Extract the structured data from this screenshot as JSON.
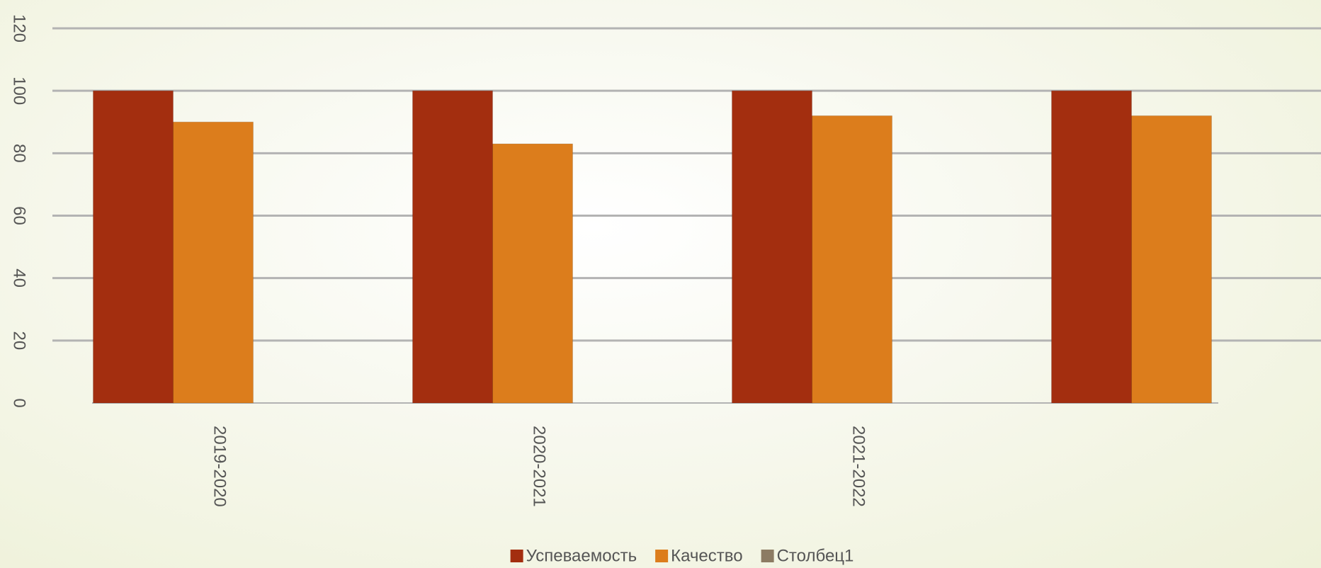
{
  "chart_data": {
    "type": "bar",
    "categories": [
      "2019-2020",
      "2020-2021",
      "2021-2022",
      null
    ],
    "series": [
      {
        "name": "Успеваемость",
        "color": "#a32e0f",
        "values": [
          100,
          100,
          100,
          100
        ]
      },
      {
        "name": "Качество",
        "color": "#dc7d1c",
        "values": [
          90,
          83,
          92,
          92
        ]
      },
      {
        "name": "Столбец1",
        "color": "#8c7b63",
        "values": [
          null,
          null,
          null,
          null
        ]
      }
    ],
    "ylim": [
      0,
      120
    ],
    "yticks": [
      0,
      20,
      40,
      60,
      80,
      100,
      120
    ],
    "grid": true,
    "legend": "bottom"
  }
}
